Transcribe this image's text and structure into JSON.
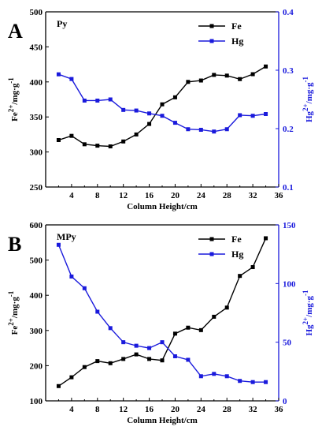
{
  "chart_data": [
    {
      "type": "line",
      "panel_letter": "A",
      "panel_label": "Py",
      "xlabel": "Column Height/cm",
      "x_ticks": [
        4,
        8,
        12,
        16,
        20,
        24,
        28,
        32,
        36
      ],
      "xlim": [
        0,
        36
      ],
      "left_axis": {
        "label_base": "Fe",
        "label_sup": "2+",
        "label_unit": "/mg·g",
        "label_exp": "-1",
        "ylim": [
          250,
          500
        ],
        "ticks": [
          250,
          300,
          350,
          400,
          450,
          500
        ],
        "color": "#000000"
      },
      "right_axis": {
        "label_base": "Hg",
        "label_sup": "2+",
        "label_unit": "/mg·g",
        "label_exp": "-1",
        "ylim": [
          0.1,
          0.4
        ],
        "ticks": [
          0.1,
          0.2,
          0.3,
          0.4
        ],
        "color": "#1a1adc"
      },
      "legend_position": "top-right",
      "x": [
        2,
        4,
        6,
        8,
        10,
        12,
        14,
        16,
        18,
        20,
        22,
        24,
        26,
        28,
        30,
        32,
        34
      ],
      "series": [
        {
          "name": "Fe",
          "axis": "left",
          "color": "#000000",
          "values": [
            317,
            323,
            311,
            309,
            308,
            315,
            325,
            340,
            368,
            378,
            400,
            402,
            410,
            409,
            404,
            411,
            422
          ]
        },
        {
          "name": "Hg",
          "axis": "right",
          "color": "#1a1adc",
          "values": [
            0.293,
            0.285,
            0.248,
            0.248,
            0.25,
            0.232,
            0.231,
            0.226,
            0.222,
            0.21,
            0.199,
            0.198,
            0.195,
            0.199,
            0.223,
            0.222,
            0.225
          ]
        }
      ]
    },
    {
      "type": "line",
      "panel_letter": "B",
      "panel_label": "MPy",
      "xlabel": "Column Height/cm",
      "x_ticks": [
        4,
        8,
        12,
        16,
        20,
        24,
        28,
        32,
        36
      ],
      "xlim": [
        0,
        36
      ],
      "left_axis": {
        "label_base": "Fe",
        "label_sup": "2+",
        "label_unit": "/mg·g",
        "label_exp": "-1",
        "ylim": [
          100,
          600
        ],
        "ticks": [
          100,
          200,
          300,
          400,
          500,
          600
        ],
        "color": "#000000"
      },
      "right_axis": {
        "label_base": "Hg",
        "label_sup": "2+",
        "label_unit": "/mg·g",
        "label_exp": "-1",
        "ylim": [
          0,
          150
        ],
        "ticks": [
          0,
          50,
          100,
          150
        ],
        "color": "#1a1adc"
      },
      "legend_position": "top-right",
      "x": [
        2,
        4,
        6,
        8,
        10,
        12,
        14,
        16,
        18,
        20,
        22,
        24,
        26,
        28,
        30,
        32,
        34
      ],
      "series": [
        {
          "name": "Fe",
          "axis": "left",
          "color": "#000000",
          "values": [
            142,
            167,
            196,
            213,
            207,
            219,
            232,
            219,
            215,
            291,
            308,
            301,
            339,
            365,
            455,
            480,
            562
          ]
        },
        {
          "name": "Hg",
          "axis": "right",
          "color": "#1a1adc",
          "values": [
            133,
            106,
            96,
            76,
            62,
            50,
            47,
            45,
            50,
            38,
            35,
            21,
            23,
            21,
            17,
            16,
            16
          ]
        }
      ]
    }
  ]
}
